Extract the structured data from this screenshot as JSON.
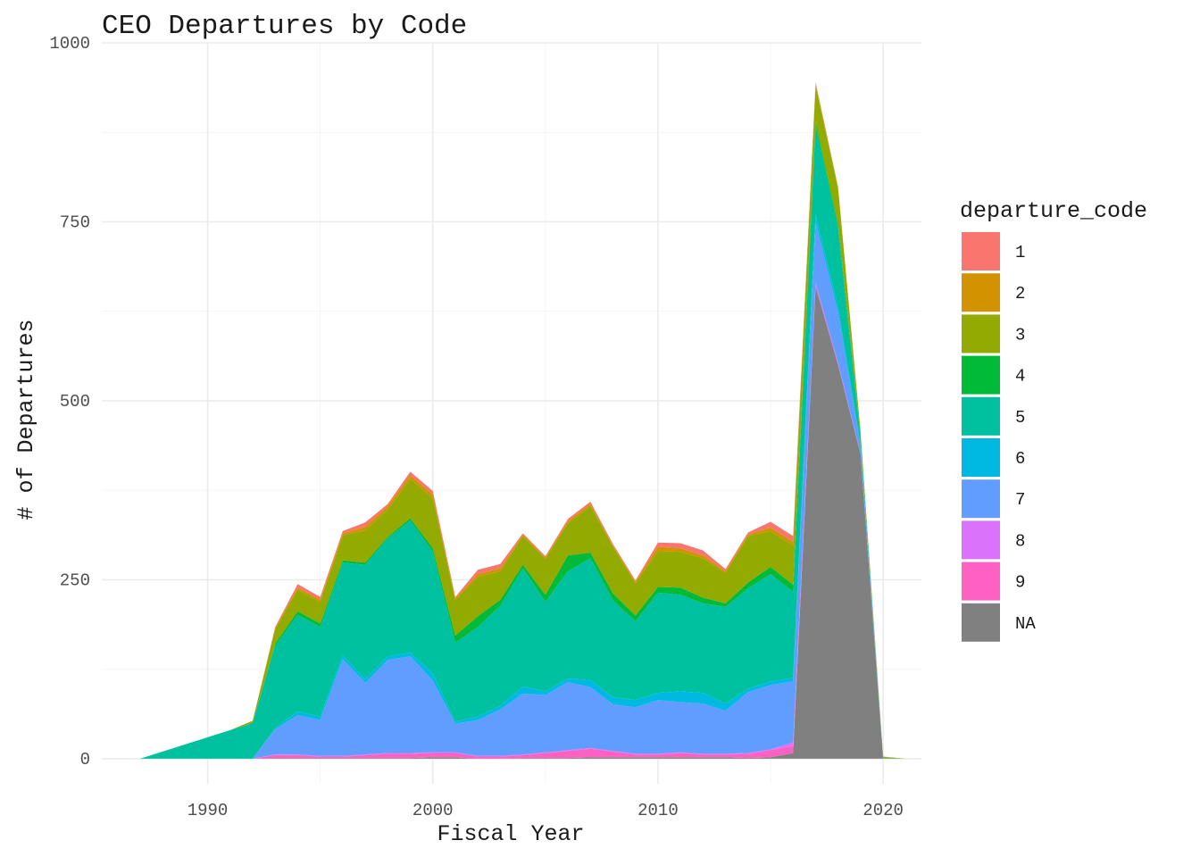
{
  "chart_data": {
    "type": "area",
    "stacked": true,
    "title": "CEO Departures by Code",
    "xlabel": "Fiscal Year",
    "ylabel": "# of Departures",
    "xlim": [
      1985.3,
      2021.7
    ],
    "ylim": [
      -35,
      1000
    ],
    "x_ticks": [
      1990,
      2000,
      2010,
      2020
    ],
    "y_ticks": [
      0,
      250,
      500,
      750,
      1000
    ],
    "grid": true,
    "legend_title": "departure_code",
    "legend_position": "right",
    "stack_order_bottom_to_top": [
      "NA",
      "9",
      "8",
      "7",
      "6",
      "5",
      "4",
      "3",
      "2",
      "1"
    ],
    "x": [
      1987,
      1988,
      1989,
      1990,
      1991,
      1992,
      1993,
      1994,
      1995,
      1996,
      1997,
      1998,
      1999,
      2000,
      2001,
      2002,
      2003,
      2004,
      2005,
      2006,
      2007,
      2008,
      2009,
      2010,
      2011,
      2012,
      2013,
      2014,
      2015,
      2016,
      2017,
      2018,
      2019,
      2020,
      2021
    ],
    "series": [
      {
        "name": "1",
        "color": "#F8766D",
        "values": [
          0,
          0,
          0,
          0,
          0,
          0,
          1,
          5,
          4,
          3,
          6,
          3,
          5,
          5,
          2,
          6,
          6,
          2,
          2,
          3,
          3,
          2,
          2,
          6,
          7,
          7,
          3,
          3,
          8,
          8,
          2,
          1,
          0,
          0,
          0
        ]
      },
      {
        "name": "2",
        "color": "#D39200",
        "values": [
          0,
          0,
          0,
          0,
          0,
          0,
          2,
          3,
          3,
          3,
          5,
          5,
          5,
          5,
          2,
          4,
          4,
          2,
          2,
          3,
          3,
          2,
          2,
          6,
          5,
          4,
          2,
          2,
          5,
          5,
          3,
          2,
          0,
          1,
          0
        ]
      },
      {
        "name": "3",
        "color": "#93AA00",
        "values": [
          0,
          0,
          0,
          0,
          0,
          3,
          20,
          30,
          30,
          35,
          45,
          38,
          55,
          70,
          50,
          55,
          40,
          40,
          50,
          45,
          65,
          65,
          45,
          50,
          50,
          55,
          43,
          65,
          50,
          55,
          50,
          50,
          5,
          1,
          0
        ]
      },
      {
        "name": "4",
        "color": "#00BA38",
        "values": [
          0,
          0,
          0,
          0,
          0,
          0,
          3,
          5,
          5,
          3,
          3,
          2,
          3,
          5,
          10,
          15,
          8,
          5,
          10,
          22,
          8,
          10,
          8,
          8,
          10,
          8,
          5,
          8,
          10,
          10,
          5,
          5,
          3,
          0,
          0
        ]
      },
      {
        "name": "5",
        "color": "#00C19F",
        "values": [
          0,
          10,
          20,
          30,
          40,
          50,
          115,
          135,
          125,
          130,
          160,
          165,
          185,
          170,
          110,
          125,
          140,
          165,
          125,
          150,
          170,
          135,
          110,
          140,
          135,
          125,
          135,
          140,
          150,
          120,
          125,
          110,
          10,
          1,
          0
        ]
      },
      {
        "name": "6",
        "color": "#00B9E3",
        "values": [
          0,
          0,
          0,
          0,
          0,
          0,
          2,
          5,
          5,
          5,
          5,
          5,
          5,
          10,
          3,
          5,
          5,
          10,
          5,
          5,
          10,
          10,
          10,
          10,
          15,
          15,
          10,
          5,
          5,
          5,
          10,
          8,
          2,
          0,
          0
        ]
      },
      {
        "name": "7",
        "color": "#619CFF",
        "values": [
          0,
          0,
          0,
          0,
          0,
          0,
          35,
          55,
          50,
          135,
          100,
          130,
          135,
          100,
          40,
          50,
          65,
          85,
          80,
          95,
          85,
          65,
          65,
          75,
          70,
          70,
          60,
          85,
          90,
          85,
          85,
          70,
          10,
          0,
          0
        ]
      },
      {
        "name": "8",
        "color": "#DB72FB",
        "values": [
          0,
          0,
          0,
          0,
          0,
          0,
          1,
          1,
          1,
          1,
          1,
          1,
          1,
          1,
          1,
          1,
          1,
          1,
          1,
          1,
          1,
          1,
          1,
          1,
          1,
          1,
          1,
          1,
          1,
          5,
          5,
          3,
          1,
          0,
          0
        ]
      },
      {
        "name": "9",
        "color": "#FF61C3",
        "values": [
          0,
          0,
          0,
          0,
          0,
          0,
          4,
          4,
          2,
          2,
          4,
          6,
          6,
          6,
          6,
          3,
          3,
          4,
          7,
          10,
          12,
          8,
          4,
          4,
          6,
          4,
          4,
          6,
          10,
          10,
          0,
          0,
          0,
          0,
          0
        ]
      },
      {
        "name": "NA",
        "color": "#808080",
        "values": [
          0,
          0,
          0,
          0,
          0,
          0,
          1,
          1,
          1,
          1,
          1,
          1,
          1,
          2,
          2,
          0,
          0,
          1,
          1,
          1,
          2,
          2,
          2,
          2,
          2,
          2,
          2,
          1,
          2,
          8,
          660,
          550,
          425,
          0,
          0
        ]
      }
    ]
  }
}
